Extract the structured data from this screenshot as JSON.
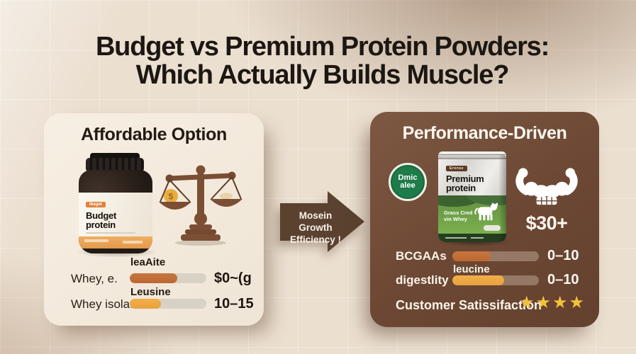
{
  "title": {
    "line1": "Budget vs Premium Protein Powders:",
    "line2": "Which Actually Builds Muscle?"
  },
  "colors": {
    "background": "#ebdfd0",
    "left_card": "#f3ebdf",
    "right_card": "#6c4834",
    "arrow_brown": "#5a4130",
    "accent_rust": "#bd6832",
    "accent_amber": "#e8a23e",
    "star_gold": "#f2c13b",
    "badge_green": "#1e7b4a"
  },
  "left_card": {
    "header": "Affordable Option",
    "jar": {
      "badge": "Ibeget",
      "name_line1": "Budget",
      "name_line2": "protein"
    },
    "scale_coin_symbol": "$",
    "rows": [
      {
        "label": "Whey, e.",
        "bar_label": "leaAite",
        "value": "$0~(g",
        "percent": 62
      },
      {
        "label": "Whey isolate",
        "bar_label": "Leusine",
        "value": "10–15",
        "percent": 41
      }
    ]
  },
  "arrow": {
    "line1": "Mosein Growth",
    "line2": "Efficiency !"
  },
  "right_card": {
    "header": "Performance-Driven",
    "badge": {
      "line1": "Dmic",
      "line2": "alee"
    },
    "pouch": {
      "badge": "Eronse",
      "name_line1": "Premium",
      "name_line2": "protein",
      "green_line1": "Grass Cred",
      "green_line2": "vin Whey"
    },
    "price": "$30+",
    "rows": [
      {
        "label": "BCGAAs",
        "value": "0–10",
        "percent": 44
      },
      {
        "label": "digestlity",
        "bar_label": "leucine",
        "value": "0–10",
        "percent": 60
      }
    ],
    "satisfaction": {
      "label": "Customer Satissifaction",
      "stars": "★★★★",
      "stars_count": 4
    }
  }
}
